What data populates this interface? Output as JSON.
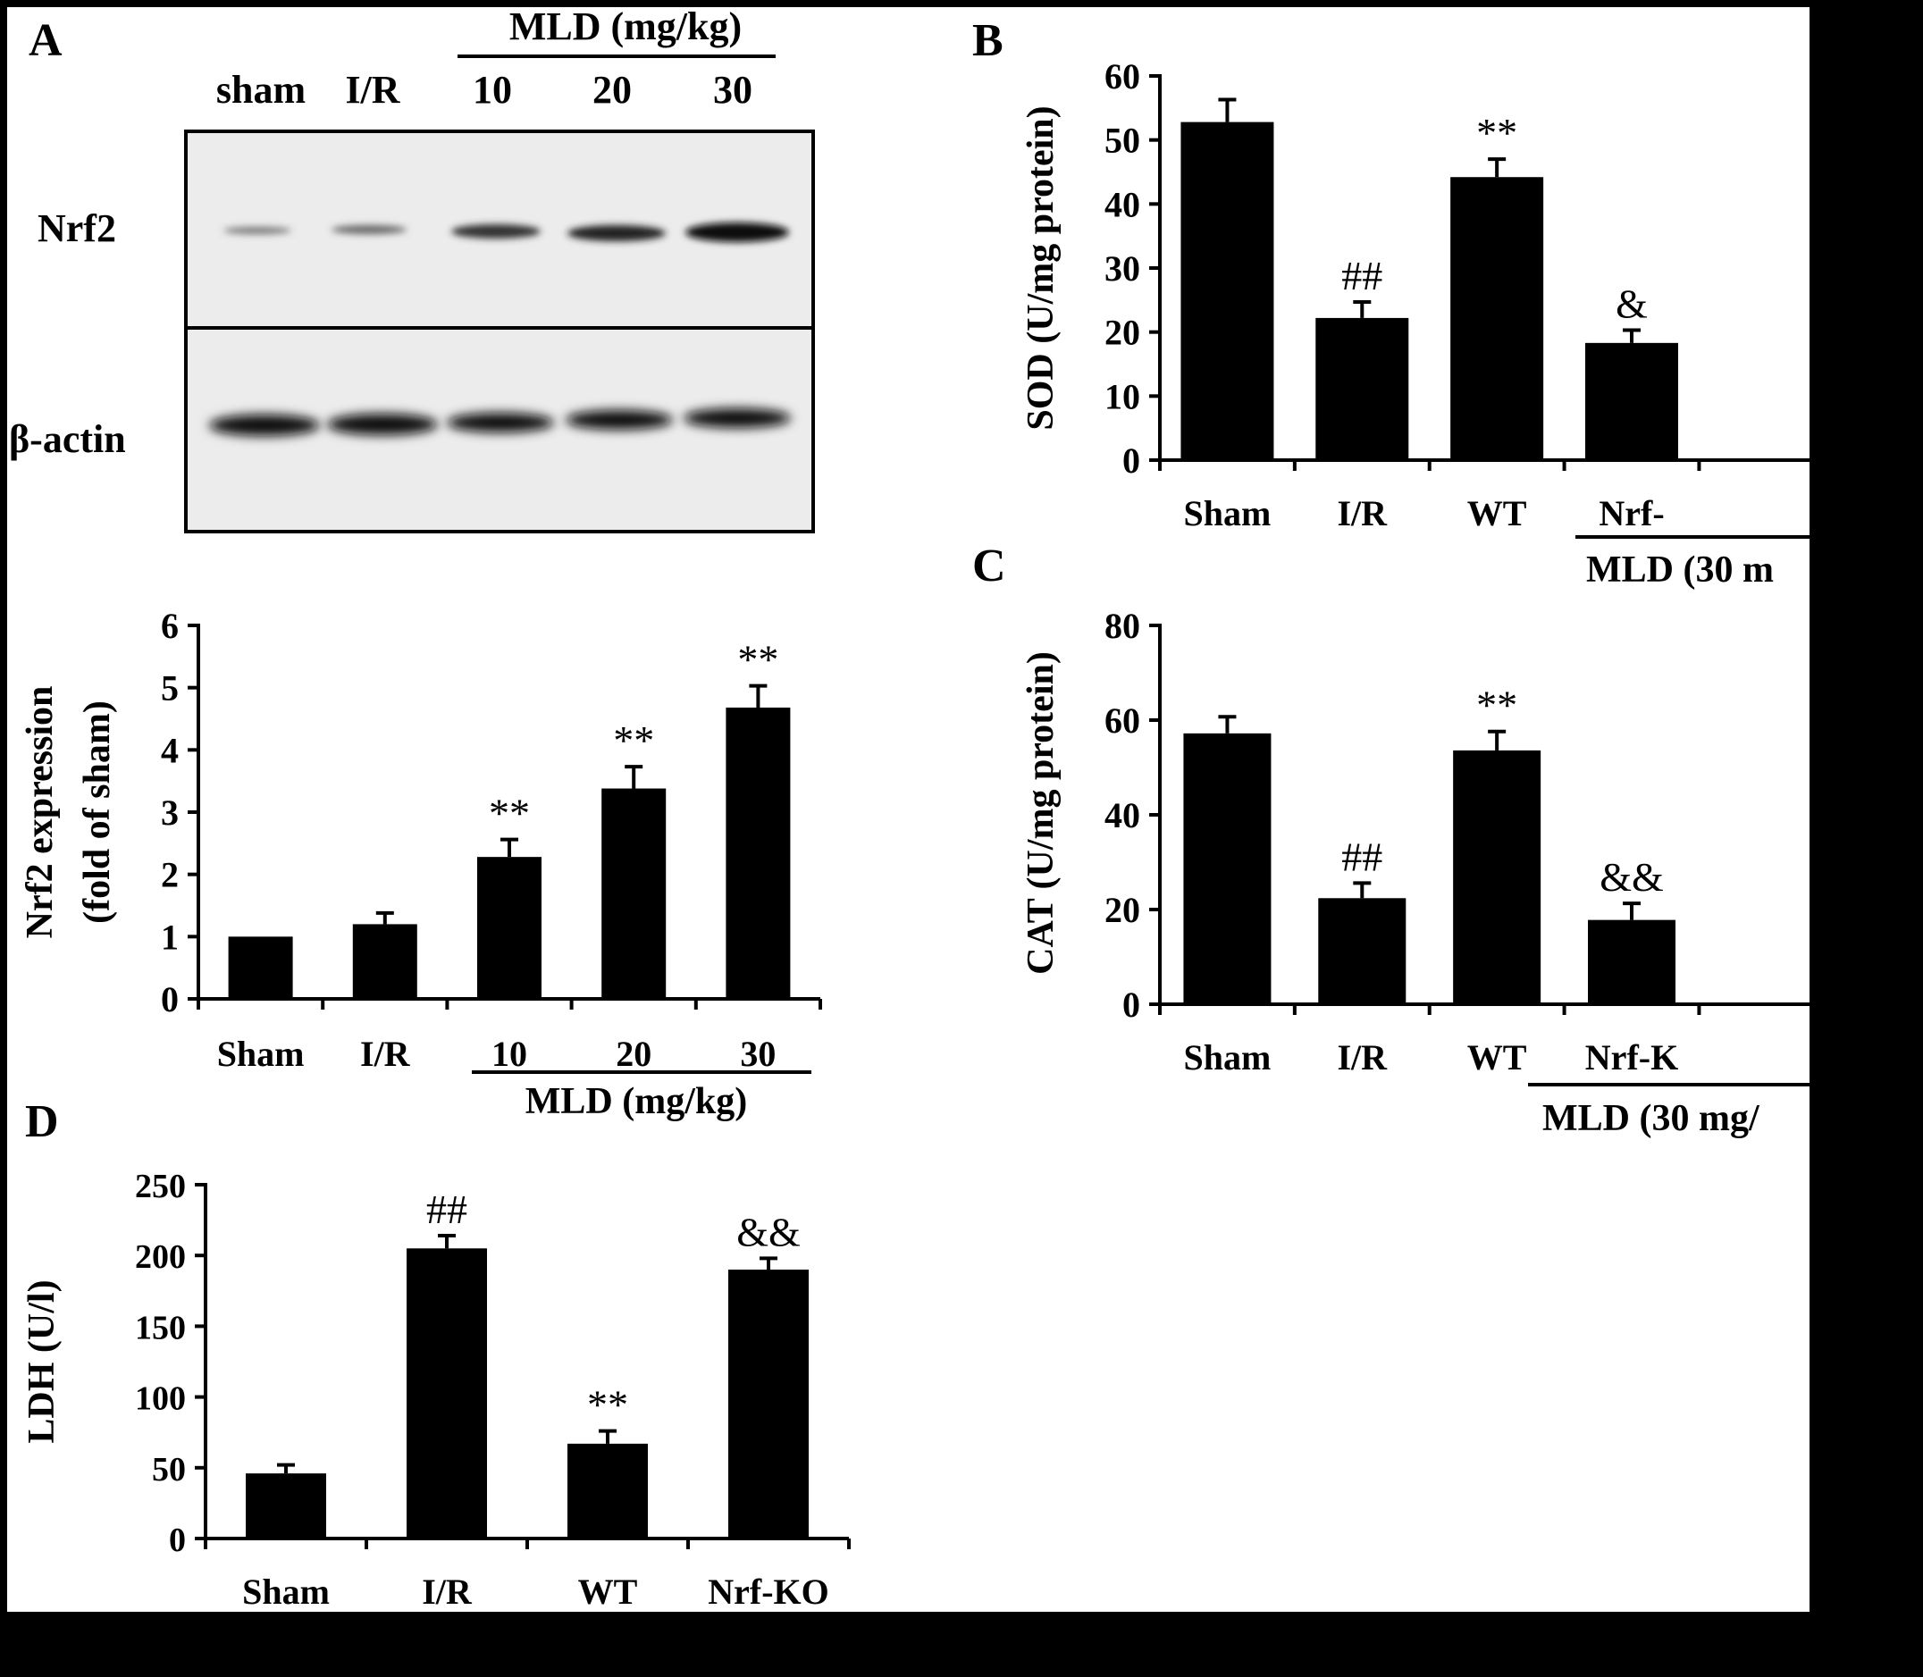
{
  "panel_a": {
    "letter": "A",
    "blot": {
      "group_label": "MLD (mg/kg)",
      "lanes": [
        "sham",
        "I/R",
        "10",
        "20",
        "30"
      ],
      "rows": [
        "Nrf2",
        "β-actin"
      ]
    }
  },
  "chart_data": [
    {
      "id": "nrf2",
      "type": "bar",
      "ylabel": "Nrf2 expression",
      "ylabel2": "(fold of sham)",
      "categories": [
        "Sham",
        "I/R",
        "10",
        "20",
        "30"
      ],
      "group_label": "MLD (mg/kg)",
      "values": [
        1.0,
        1.2,
        2.28,
        3.38,
        4.68
      ],
      "errors": [
        0,
        0.18,
        0.28,
        0.35,
        0.35
      ],
      "annotations": [
        "",
        "",
        "**",
        "**",
        "**"
      ],
      "ylim": [
        0,
        6
      ],
      "yticks": [
        "0",
        "1",
        "2",
        "3",
        "4",
        "5",
        "6"
      ],
      "grid": false
    },
    {
      "id": "sod",
      "letter": "B",
      "type": "bar",
      "ylabel": "SOD (U/mg protein)",
      "categories": [
        "Sham",
        "I/R",
        "WT",
        "Nrf-"
      ],
      "group_label": "MLD (30 m",
      "values": [
        52.8,
        22.2,
        44.2,
        18.3
      ],
      "errors": [
        3.5,
        2.5,
        2.8,
        2.0
      ],
      "annotations": [
        "",
        "##",
        "**",
        "&"
      ],
      "ylim": [
        0,
        60
      ],
      "yticks": [
        "0",
        "10",
        "20",
        "30",
        "40",
        "50",
        "60"
      ],
      "grid": false
    },
    {
      "id": "cat",
      "letter": "C",
      "type": "bar",
      "ylabel": "CAT (U/mg protein)",
      "categories": [
        "Sham",
        "I/R",
        "WT",
        "Nrf-K"
      ],
      "group_label": "MLD (30 mg/",
      "values": [
        57.2,
        22.4,
        53.6,
        17.8
      ],
      "errors": [
        3.5,
        3.2,
        4.0,
        3.5
      ],
      "annotations": [
        "",
        "##",
        "**",
        "&&"
      ],
      "ylim": [
        0,
        80
      ],
      "yticks": [
        "0",
        "20",
        "40",
        "60",
        "80"
      ],
      "grid": false
    },
    {
      "id": "ldh",
      "letter": "D",
      "type": "bar",
      "ylabel": "LDH (U/l)",
      "categories": [
        "Sham",
        "I/R",
        "WT",
        "Nrf-KO"
      ],
      "values": [
        46,
        205,
        67,
        190
      ],
      "errors": [
        6,
        9,
        9,
        8
      ],
      "annotations": [
        "",
        "##",
        "**",
        "&&"
      ],
      "ylim": [
        0,
        250
      ],
      "yticks": [
        "0",
        "50",
        "100",
        "150",
        "200",
        "250"
      ],
      "grid": false
    }
  ]
}
